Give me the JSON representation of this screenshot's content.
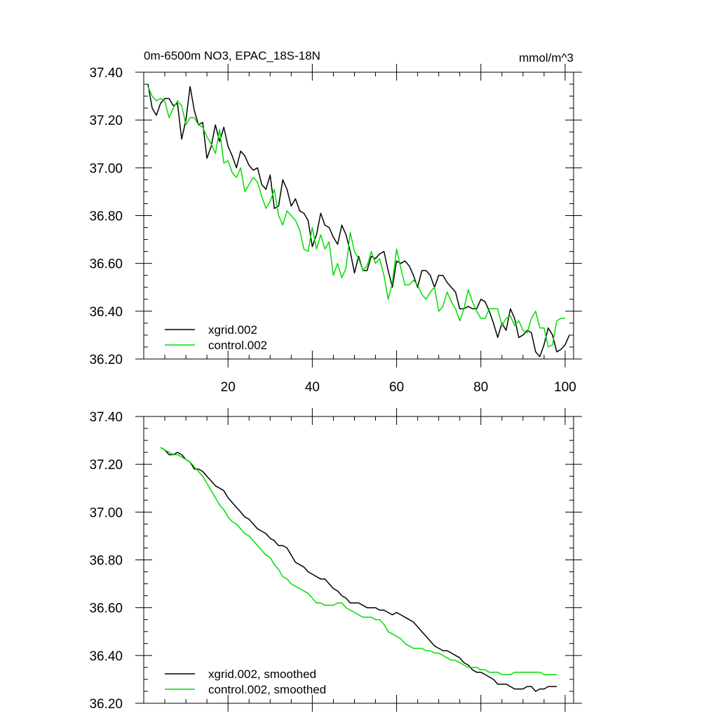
{
  "chart_data": [
    {
      "type": "line",
      "title": "0m-6500m NO3, EPAC_18S-18N",
      "units": "mmol/m^3",
      "xlim": [
        0,
        102
      ],
      "ylim": [
        36.2,
        37.4
      ],
      "xticks": [
        20,
        40,
        60,
        80,
        100
      ],
      "ytick_labels": [
        "37.40",
        "37.20",
        "37.00",
        "36.80",
        "36.60",
        "36.40",
        "36.20"
      ],
      "show_xtick_labels": true,
      "legend_position": "bottom-left",
      "x_start": 1,
      "series": [
        {
          "name": "xgrid.002",
          "color": "#000000",
          "values": [
            37.35,
            37.25,
            37.22,
            37.27,
            37.29,
            37.29,
            37.26,
            37.27,
            37.12,
            37.2,
            37.34,
            37.24,
            37.18,
            37.19,
            37.04,
            37.09,
            37.18,
            37.11,
            37.17,
            37.09,
            37.05,
            37.0,
            37.07,
            37.05,
            37.01,
            36.99,
            37.0,
            36.93,
            36.91,
            36.97,
            36.83,
            36.84,
            36.95,
            36.91,
            36.84,
            36.87,
            36.82,
            36.81,
            36.78,
            36.67,
            36.72,
            36.81,
            36.76,
            36.75,
            36.71,
            36.68,
            36.76,
            36.72,
            36.65,
            36.56,
            36.63,
            36.57,
            36.57,
            36.63,
            36.62,
            36.64,
            36.65,
            36.57,
            36.5,
            36.61,
            36.6,
            36.61,
            36.59,
            36.55,
            36.5,
            36.57,
            36.57,
            36.55,
            36.5,
            36.55,
            36.55,
            36.52,
            36.5,
            36.48,
            36.41,
            36.41,
            36.42,
            36.41,
            36.41,
            36.45,
            36.44,
            36.4,
            36.35,
            36.29,
            36.35,
            36.32,
            36.41,
            36.37,
            36.29,
            36.3,
            36.32,
            36.31,
            36.23,
            36.21,
            36.26,
            36.33,
            36.3,
            36.23,
            36.24,
            36.26,
            36.3
          ]
        },
        {
          "name": "control.002",
          "color": "#00dd00",
          "values": [
            37.34,
            37.3,
            37.28,
            37.29,
            37.28,
            37.21,
            37.25,
            37.28,
            37.26,
            37.18,
            37.21,
            37.21,
            37.18,
            37.17,
            37.13,
            37.1,
            37.06,
            37.16,
            37.02,
            37.03,
            36.98,
            36.96,
            37.0,
            36.9,
            36.93,
            36.96,
            36.94,
            36.88,
            36.83,
            36.86,
            36.91,
            36.8,
            36.76,
            36.82,
            36.8,
            36.78,
            36.74,
            36.66,
            36.65,
            36.75,
            36.66,
            36.72,
            36.66,
            36.69,
            36.55,
            36.6,
            36.54,
            36.58,
            36.73,
            36.65,
            36.62,
            36.57,
            36.59,
            36.65,
            36.6,
            36.62,
            36.55,
            36.45,
            36.52,
            36.66,
            36.58,
            36.51,
            36.51,
            36.53,
            36.51,
            36.47,
            36.45,
            36.48,
            36.5,
            36.4,
            36.42,
            36.48,
            36.44,
            36.41,
            36.36,
            36.41,
            36.49,
            36.44,
            36.4,
            36.37,
            36.37,
            36.41,
            36.41,
            36.41,
            36.34,
            36.37,
            36.38,
            36.34,
            36.36,
            36.32,
            36.31,
            36.37,
            36.4,
            36.33,
            36.33,
            36.25,
            36.26,
            36.36,
            36.37,
            36.37
          ]
        }
      ]
    },
    {
      "type": "line",
      "title": "",
      "units": "",
      "xlim": [
        0,
        102
      ],
      "ylim": [
        36.2,
        37.4
      ],
      "xticks": [
        20,
        40,
        60,
        80,
        100
      ],
      "ytick_labels": [
        "37.40",
        "37.20",
        "37.00",
        "36.80",
        "36.60",
        "36.40",
        "36.20"
      ],
      "show_xtick_labels": false,
      "legend_position": "bottom-left",
      "x_start": 4,
      "series": [
        {
          "name": "xgrid.002, smoothed",
          "color": "#000000",
          "values": [
            37.27,
            37.26,
            37.24,
            37.24,
            37.25,
            37.24,
            37.22,
            37.21,
            37.18,
            37.18,
            37.17,
            37.15,
            37.13,
            37.11,
            37.1,
            37.09,
            37.06,
            37.04,
            37.02,
            37.0,
            36.98,
            36.97,
            36.95,
            36.93,
            36.92,
            36.91,
            36.89,
            36.88,
            36.86,
            36.86,
            36.85,
            36.82,
            36.79,
            36.78,
            36.77,
            36.75,
            36.74,
            36.73,
            36.72,
            36.72,
            36.7,
            36.68,
            36.67,
            36.65,
            36.64,
            36.62,
            36.62,
            36.62,
            36.61,
            36.6,
            36.6,
            36.6,
            36.59,
            36.59,
            36.58,
            36.57,
            36.58,
            36.57,
            36.56,
            36.55,
            36.54,
            36.52,
            36.5,
            36.48,
            36.46,
            36.44,
            36.43,
            36.42,
            36.42,
            36.41,
            36.4,
            36.39,
            36.37,
            36.36,
            36.34,
            36.33,
            36.33,
            36.32,
            36.31,
            36.3,
            36.28,
            36.28,
            36.28,
            36.27,
            36.26,
            36.26,
            36.26,
            36.27,
            36.27,
            36.25,
            36.26,
            36.26,
            36.27,
            36.27,
            36.27
          ]
        },
        {
          "name": "control.002, smoothed",
          "color": "#00dd00",
          "values": [
            37.27,
            37.26,
            37.25,
            37.24,
            37.24,
            37.23,
            37.22,
            37.21,
            37.19,
            37.17,
            37.15,
            37.12,
            37.09,
            37.06,
            37.03,
            37.01,
            36.98,
            36.96,
            36.95,
            36.93,
            36.91,
            36.9,
            36.88,
            36.86,
            36.84,
            36.82,
            36.81,
            36.78,
            36.76,
            36.73,
            36.72,
            36.7,
            36.69,
            36.68,
            36.67,
            36.66,
            36.64,
            36.62,
            36.62,
            36.61,
            36.61,
            36.61,
            36.62,
            36.62,
            36.6,
            36.59,
            36.58,
            36.57,
            36.56,
            36.56,
            36.56,
            36.55,
            36.55,
            36.53,
            36.5,
            36.49,
            36.48,
            36.47,
            36.45,
            36.44,
            36.43,
            36.43,
            36.43,
            36.42,
            36.42,
            36.41,
            36.41,
            36.4,
            36.39,
            36.38,
            36.38,
            36.37,
            36.36,
            36.35,
            36.35,
            36.35,
            36.34,
            36.34,
            36.33,
            36.33,
            36.33,
            36.32,
            36.32,
            36.32,
            36.33,
            36.33,
            36.33,
            36.33,
            36.33,
            36.33,
            36.33,
            36.32,
            36.32,
            36.32,
            36.32
          ]
        }
      ]
    }
  ]
}
